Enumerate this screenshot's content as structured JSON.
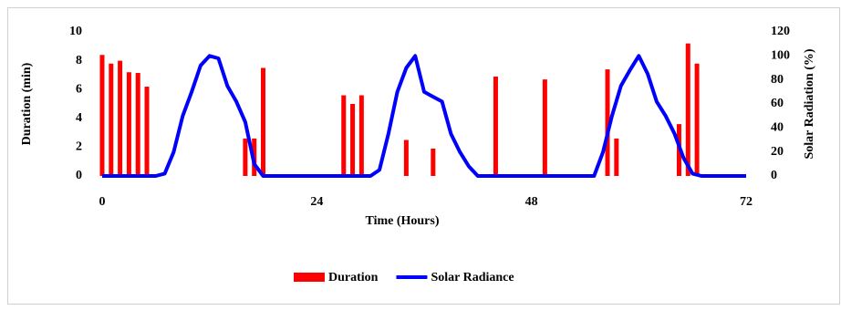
{
  "chart_data": {
    "type": "bar-line",
    "xlabel": "Time (Hours)",
    "ylabel": "Duration (min)",
    "y2label": "Solar Radiation (%)",
    "xlim": [
      0,
      72
    ],
    "xticks": [
      0,
      24,
      48,
      72
    ],
    "ylim": [
      0,
      10
    ],
    "yticks": [
      0,
      2,
      4,
      6,
      8,
      10
    ],
    "y2lim": [
      0,
      120
    ],
    "y2ticks": [
      0,
      20,
      40,
      60,
      80,
      100,
      120
    ],
    "legend": "bottom",
    "series": [
      {
        "name": "Duration",
        "type": "bar",
        "color": "#ff0000",
        "x": [
          0,
          1,
          2,
          3,
          4,
          5,
          16,
          17,
          18,
          27,
          28,
          29,
          34,
          37,
          44,
          49.5,
          56.5,
          57.5,
          64.5,
          65.5,
          66.5
        ],
        "values": [
          8.4,
          7.8,
          8.0,
          7.2,
          7.15,
          6.2,
          2.6,
          2.6,
          7.5,
          5.6,
          5.0,
          5.6,
          2.5,
          1.9,
          6.9,
          6.7,
          7.4,
          2.6,
          3.6,
          9.2,
          7.8
        ]
      },
      {
        "name": "Solar Radiance",
        "type": "line",
        "axis": "y2",
        "color": "#0000ff",
        "x": [
          0,
          1,
          2,
          3,
          4,
          5,
          6,
          7,
          8,
          9,
          10,
          11,
          12,
          13,
          14,
          15,
          16,
          17,
          18,
          19,
          20,
          21,
          22,
          23,
          24,
          25,
          26,
          27,
          28,
          29,
          30,
          31,
          32,
          33,
          34,
          35,
          36,
          37,
          38,
          39,
          40,
          41,
          42,
          43,
          44,
          45,
          46,
          47,
          48,
          49,
          50,
          51,
          52,
          53,
          54,
          55,
          56,
          57,
          58,
          59,
          60,
          61,
          62,
          63,
          64,
          65,
          66,
          67,
          68,
          69,
          70,
          71,
          72
        ],
        "values": [
          0,
          0,
          0,
          0,
          0,
          0,
          0,
          2,
          20,
          50,
          70,
          92,
          100,
          98,
          75,
          62,
          45,
          10,
          0,
          0,
          0,
          0,
          0,
          0,
          0,
          0,
          0,
          0,
          0,
          0,
          0,
          5,
          35,
          70,
          90,
          100,
          70,
          66,
          62,
          35,
          20,
          8,
          0,
          0,
          0,
          0,
          0,
          0,
          0,
          0,
          0,
          0,
          0,
          0,
          0,
          0,
          20,
          50,
          75,
          88,
          100,
          85,
          62,
          50,
          35,
          15,
          2,
          0,
          0,
          0,
          0,
          0,
          0
        ]
      }
    ]
  }
}
